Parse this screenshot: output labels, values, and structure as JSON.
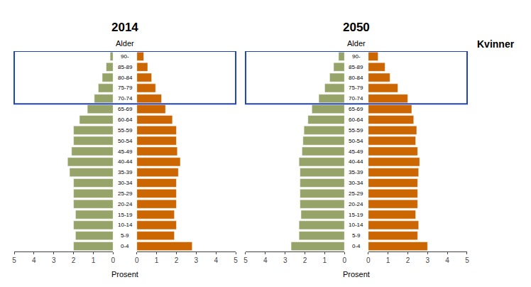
{
  "chart_data": [
    {
      "type": "bar",
      "orientation": "horizontal",
      "title": "2014",
      "xlabel": "Prosent",
      "ylabel": "Alder",
      "categories": [
        "0-4",
        "5-9",
        "10-14",
        "15-19",
        "20-24",
        "25-29",
        "30-34",
        "35-39",
        "40-44",
        "45-49",
        "50-54",
        "55-59",
        "60-64",
        "65-69",
        "70-74",
        "75-79",
        "80-84",
        "85-89",
        "90-"
      ],
      "series": [
        {
          "color": "#96a469",
          "values": [
            2.0,
            1.9,
            2.0,
            1.9,
            2.0,
            2.0,
            2.0,
            2.2,
            2.3,
            2.1,
            2.0,
            2.0,
            1.7,
            1.3,
            0.95,
            0.75,
            0.55,
            0.35,
            0.15
          ]
        },
        {
          "color": "#cc6600",
          "values": [
            2.8,
            1.9,
            2.0,
            1.9,
            2.0,
            2.0,
            2.0,
            2.1,
            2.2,
            2.05,
            2.0,
            2.0,
            1.8,
            1.45,
            1.25,
            0.95,
            0.75,
            0.55,
            0.35
          ]
        }
      ],
      "xlim": [
        0,
        5
      ],
      "xticks": [
        0,
        1,
        2,
        3,
        4,
        5
      ],
      "grid": false,
      "highlight": {
        "start": "70-74",
        "end": "90-",
        "color": "#2244bb"
      }
    },
    {
      "type": "bar",
      "orientation": "horizontal",
      "title": "2050",
      "xlabel": "Prosent",
      "ylabel": "Alder",
      "categories": [
        "0-4",
        "5-9",
        "10-14",
        "15-19",
        "20-24",
        "25-29",
        "30-34",
        "35-39",
        "40-44",
        "45-49",
        "50-54",
        "55-59",
        "60-64",
        "65-69",
        "70-74",
        "75-79",
        "80-84",
        "85-89",
        "90-"
      ],
      "series": [
        {
          "color": "#96a469",
          "values": [
            2.7,
            2.3,
            2.3,
            2.2,
            2.25,
            2.25,
            2.25,
            2.25,
            2.3,
            2.15,
            2.1,
            2.05,
            1.85,
            1.65,
            1.3,
            1.0,
            0.75,
            0.55,
            0.3
          ]
        },
        {
          "color": "#cc6600",
          "values": [
            3.0,
            2.5,
            2.55,
            2.4,
            2.5,
            2.5,
            2.5,
            2.55,
            2.6,
            2.5,
            2.4,
            2.45,
            2.3,
            2.2,
            2.0,
            1.5,
            1.1,
            0.85,
            0.5
          ]
        }
      ],
      "xlim": [
        0,
        5
      ],
      "xticks": [
        0,
        1,
        2,
        3,
        4,
        5
      ],
      "grid": false,
      "highlight": {
        "start": "70-74",
        "end": "90-",
        "color": "#2244bb"
      },
      "annotation": "Kvinner"
    }
  ]
}
